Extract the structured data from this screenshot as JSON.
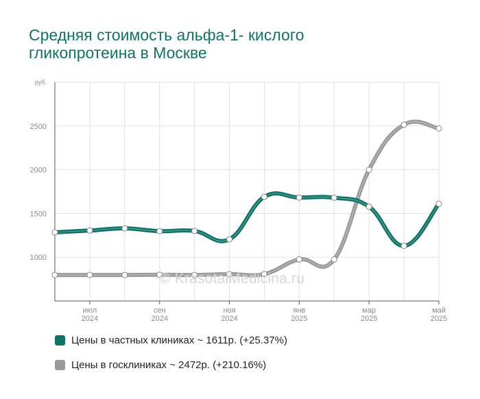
{
  "title": "Средняя стоимость альфа-1- кислого гликопротеина в Москве",
  "watermark": "© KrasotaiMedicina.ru",
  "colors": {
    "private": "#0e7366",
    "public": "#9a9a9a",
    "grid": "#e1e1e1",
    "axis": "#555555",
    "title": "#0e7366"
  },
  "legend": [
    {
      "label": "Цены в частных клиниках ~ 1611р. (+25.37%)",
      "color": "#0e7366"
    },
    {
      "label": "Цены в госклиниках ~ 2472р. (+210.16%)",
      "color": "#9a9a9a"
    }
  ],
  "chart_data": {
    "type": "line",
    "title": "Средняя стоимость альфа-1- кислого гликопротеина в Москве",
    "ylabel": "руб.",
    "xlabel": "",
    "ylim": [
      500,
      3000
    ],
    "yticks": [
      1000,
      1500,
      2000,
      2500
    ],
    "x": [
      "2024-06",
      "2024-07",
      "2024-08",
      "2024-09",
      "2024-10",
      "2024-11",
      "2024-12",
      "2025-01",
      "2025-02",
      "2025-03",
      "2025-04",
      "2025-05"
    ],
    "xtick_labels": [
      {
        "month": "июл",
        "year": "2024"
      },
      {
        "month": "сен",
        "year": "2024"
      },
      {
        "month": "ноя",
        "year": "2024"
      },
      {
        "month": "янв",
        "year": "2025"
      },
      {
        "month": "мар",
        "year": "2025"
      },
      {
        "month": "май",
        "year": "2025"
      }
    ],
    "series": [
      {
        "name": "Цены в частных клиниках",
        "values": [
          1285,
          1305,
          1330,
          1298,
          1300,
          1205,
          1690,
          1682,
          1680,
          1578,
          1130,
          1611
        ]
      },
      {
        "name": "Цены в госклиниках",
        "values": [
          797,
          797,
          797,
          800,
          797,
          807,
          807,
          975,
          975,
          2000,
          2515,
          2472
        ]
      }
    ],
    "grid": true,
    "legend_position": "bottom"
  }
}
